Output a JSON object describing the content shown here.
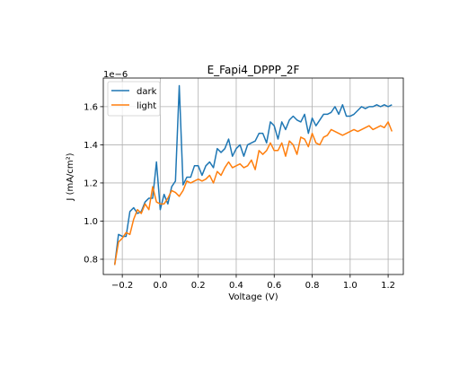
{
  "chart_data": {
    "type": "line",
    "title": "E_Fapi4_DPPP_2F",
    "xlabel": "Voltage (V)",
    "ylabel": "J (mA/cm²)",
    "y_offset_text": "1e−6",
    "xlim": [
      -0.3,
      1.28
    ],
    "ylim": [
      0.72,
      1.75
    ],
    "xticks": [
      -0.2,
      0.0,
      0.2,
      0.4,
      0.6,
      0.8,
      1.0,
      1.2
    ],
    "xtick_labels": [
      "−0.2",
      "0.0",
      "0.2",
      "0.4",
      "0.6",
      "0.8",
      "1.0",
      "1.2"
    ],
    "yticks": [
      0.8,
      1.0,
      1.2,
      1.4,
      1.6
    ],
    "ytick_labels": [
      "0.8",
      "1.0",
      "1.2",
      "1.4",
      "1.6"
    ],
    "grid": true,
    "legend_position": "upper-left",
    "x": [
      -0.24,
      -0.22,
      -0.2,
      -0.18,
      -0.16,
      -0.14,
      -0.12,
      -0.1,
      -0.08,
      -0.06,
      -0.04,
      -0.02,
      0.0,
      0.02,
      0.04,
      0.06,
      0.08,
      0.1,
      0.12,
      0.14,
      0.16,
      0.18,
      0.2,
      0.22,
      0.24,
      0.26,
      0.28,
      0.3,
      0.32,
      0.34,
      0.36,
      0.38,
      0.4,
      0.42,
      0.44,
      0.46,
      0.48,
      0.5,
      0.52,
      0.54,
      0.56,
      0.58,
      0.6,
      0.62,
      0.64,
      0.66,
      0.68,
      0.7,
      0.72,
      0.74,
      0.76,
      0.78,
      0.8,
      0.82,
      0.84,
      0.86,
      0.88,
      0.9,
      0.92,
      0.94,
      0.96,
      0.98,
      1.0,
      1.02,
      1.04,
      1.06,
      1.08,
      1.1,
      1.12,
      1.14,
      1.16,
      1.18,
      1.2,
      1.22
    ],
    "series": [
      {
        "name": "dark",
        "color": "#1f77b4",
        "values": [
          0.77,
          0.93,
          0.92,
          0.92,
          1.05,
          1.07,
          1.04,
          1.05,
          1.1,
          1.12,
          1.12,
          1.31,
          1.06,
          1.14,
          1.09,
          1.18,
          1.21,
          1.71,
          1.19,
          1.23,
          1.23,
          1.29,
          1.29,
          1.24,
          1.29,
          1.31,
          1.28,
          1.38,
          1.36,
          1.38,
          1.43,
          1.34,
          1.38,
          1.4,
          1.34,
          1.4,
          1.41,
          1.42,
          1.46,
          1.46,
          1.41,
          1.52,
          1.5,
          1.43,
          1.52,
          1.48,
          1.53,
          1.55,
          1.53,
          1.52,
          1.56,
          1.46,
          1.54,
          1.5,
          1.53,
          1.56,
          1.56,
          1.57,
          1.6,
          1.56,
          1.61,
          1.55,
          1.55,
          1.56,
          1.58,
          1.6,
          1.59,
          1.6,
          1.6,
          1.61,
          1.6,
          1.61,
          1.6,
          1.61
        ]
      },
      {
        "name": "light",
        "color": "#ff7f0e",
        "values": [
          0.77,
          0.89,
          0.91,
          0.94,
          0.93,
          1.01,
          1.06,
          1.04,
          1.09,
          1.06,
          1.18,
          1.1,
          1.09,
          1.09,
          1.12,
          1.16,
          1.15,
          1.13,
          1.16,
          1.21,
          1.2,
          1.21,
          1.22,
          1.21,
          1.22,
          1.24,
          1.2,
          1.26,
          1.24,
          1.28,
          1.31,
          1.28,
          1.29,
          1.3,
          1.28,
          1.29,
          1.32,
          1.27,
          1.37,
          1.35,
          1.37,
          1.41,
          1.37,
          1.37,
          1.41,
          1.34,
          1.42,
          1.4,
          1.35,
          1.44,
          1.43,
          1.39,
          1.46,
          1.41,
          1.4,
          1.44,
          1.45,
          1.48,
          1.47,
          1.46,
          1.45,
          1.46,
          1.47,
          1.48,
          1.47,
          1.48,
          1.49,
          1.5,
          1.48,
          1.49,
          1.5,
          1.49,
          1.52,
          1.47
        ]
      }
    ]
  }
}
